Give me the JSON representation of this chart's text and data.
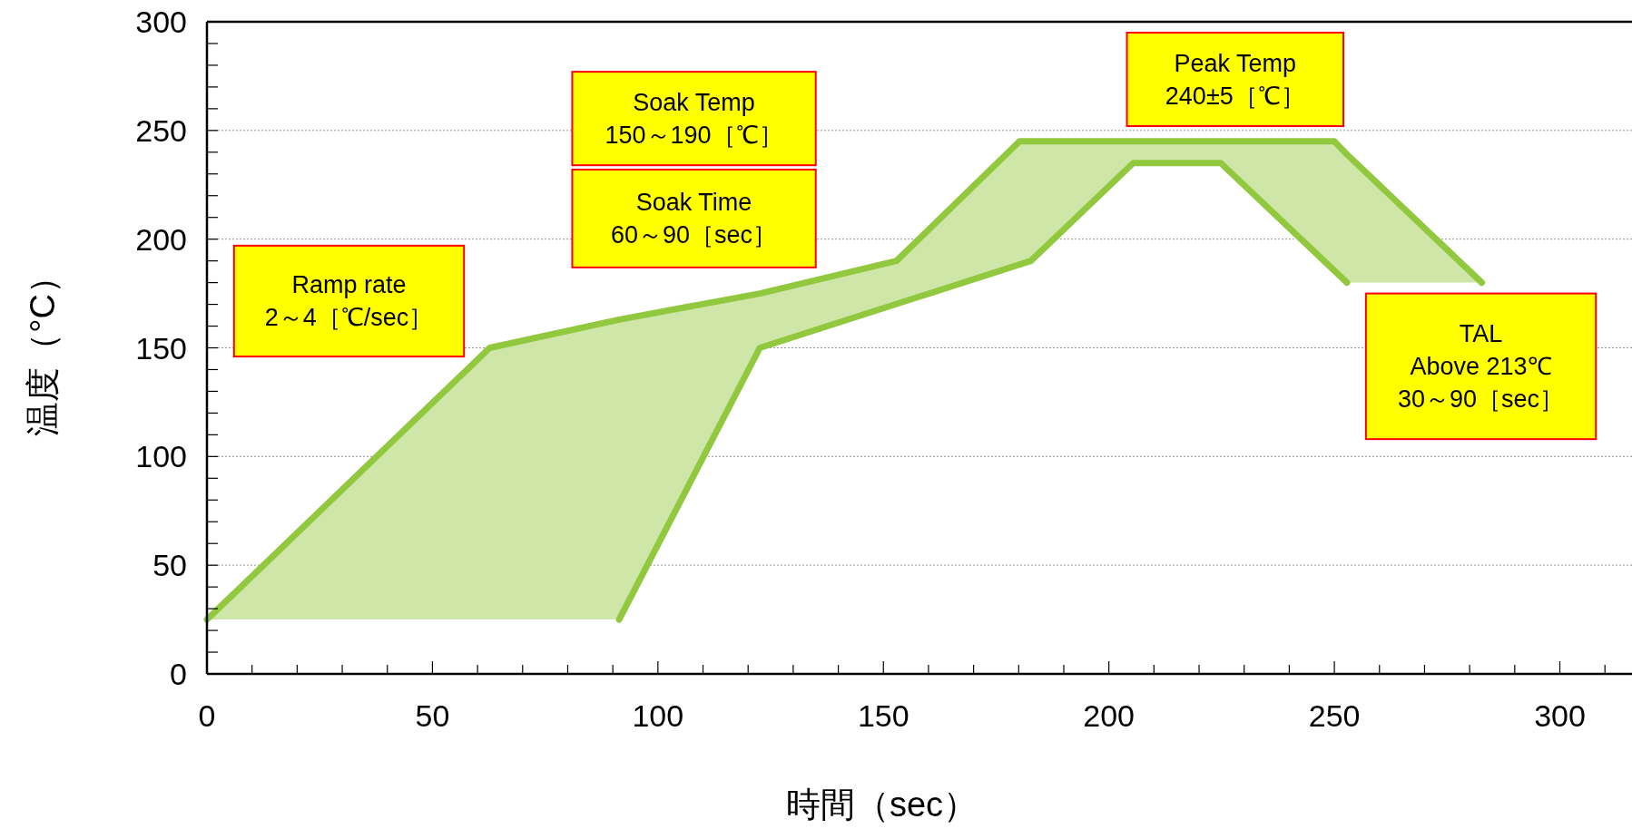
{
  "chart_data": {
    "type": "line",
    "xlabel": "時間（sec）",
    "ylabel": "温度（°C）",
    "xlim": [
      0,
      316
    ],
    "xticks": [
      0,
      50,
      100,
      150,
      200,
      250,
      300
    ],
    "ylim": [
      0,
      300
    ],
    "yticks": [
      0,
      50,
      100,
      150,
      200,
      250,
      300
    ],
    "grid": "y",
    "line_style": "solid",
    "series": [
      {
        "color": "#92c83e",
        "x": [
          0,
          62.7,
          91.4,
          122.6,
          152.9,
          180.2,
          182.7,
          205.4,
          224.8,
          250,
          252.8,
          282.7
        ],
        "values": [
          25,
          150,
          163,
          175,
          190,
          245,
          245,
          245,
          245,
          245,
          239,
          180
        ],
        "lower": [
          25,
          25,
          25,
          150,
          170,
          188,
          190,
          235,
          235,
          186,
          180,
          180
        ],
        "upper": [
          25,
          150,
          163,
          175,
          190,
          245,
          245,
          245,
          245,
          245,
          239,
          180
        ]
      },
      {
        "color": "#92c83e",
        "x": [
          91.4,
          122.6,
          182.7,
          205.4,
          224.8,
          252.8
        ],
        "values": [
          25,
          150,
          190,
          235,
          235,
          180
        ]
      }
    ],
    "annotations": [
      "Ramp rate\n2～4［℃/sec］",
      "Soak Temp\n150～190［℃］",
      "Soak Time\n60～90［sec］",
      "Peak Temp\n240±5［℃］",
      "TAL\nAbove 213℃\n30～90［sec］"
    ]
  }
}
